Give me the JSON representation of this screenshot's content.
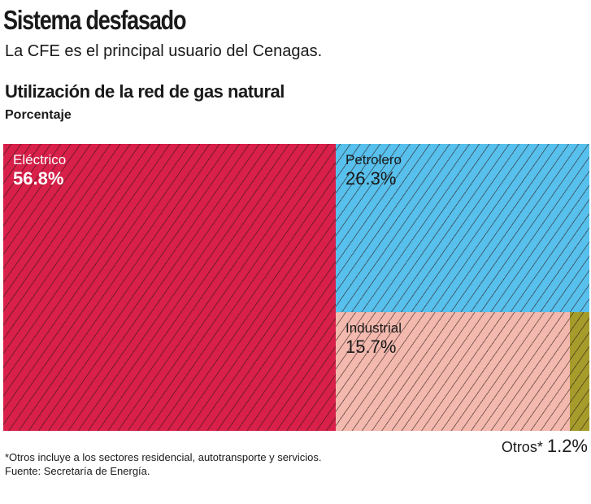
{
  "title": "Sistema desfasado",
  "subtitle": "La CFE es el principal usuario del Cenagas.",
  "chart_data": {
    "type": "treemap",
    "title": "Utilización de la red de gas natural",
    "unit": "Porcentaje",
    "categories": [
      "Eléctrico",
      "Petrolero",
      "Industrial",
      "Otros*"
    ],
    "values": [
      56.8,
      26.3,
      15.7,
      1.2
    ],
    "value_labels": [
      "56.8%",
      "26.3%",
      "15.7%",
      "1.2%"
    ],
    "colors": [
      "#d8204a",
      "#58c0ec",
      "#f3b9ae",
      "#a59c2c"
    ]
  },
  "footnotes": [
    "*Otros incluye a los sectores residencial, autotransporte y servicios.",
    "Fuente: Secretaría de Energía."
  ]
}
